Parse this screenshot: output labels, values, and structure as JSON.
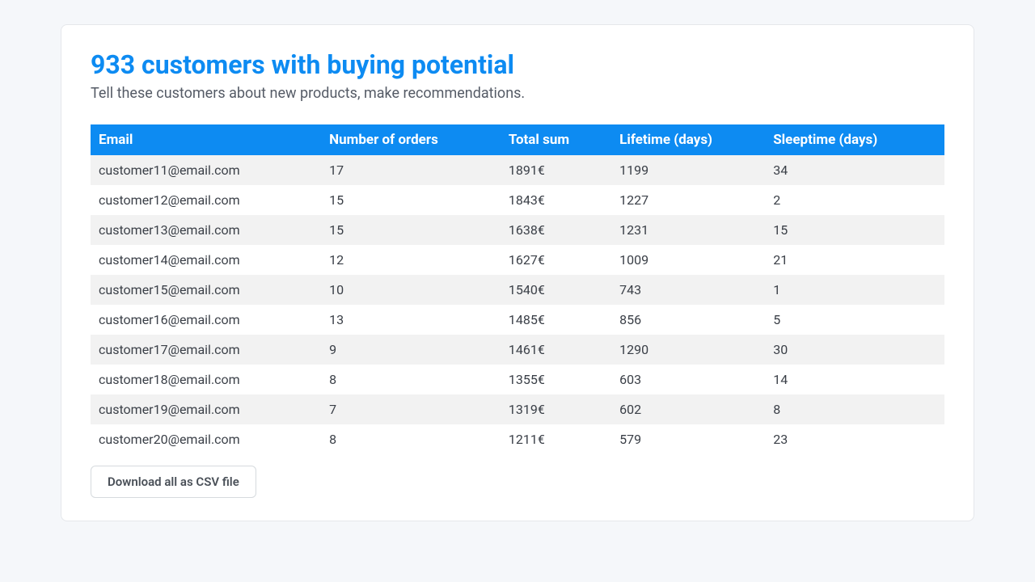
{
  "header": {
    "title": "933 customers with buying potential",
    "subtitle": "Tell these customers about new products, make recommendations."
  },
  "table": {
    "columns": [
      "Email",
      "Number of orders",
      "Total sum",
      "Lifetime (days)",
      "Sleeptime (days)"
    ],
    "rows": [
      [
        "customer11@email.com",
        "17",
        "1891€",
        "1199",
        "34"
      ],
      [
        "customer12@email.com",
        "15",
        "1843€",
        "1227",
        "2"
      ],
      [
        "customer13@email.com",
        "15",
        "1638€",
        "1231",
        "15"
      ],
      [
        "customer14@email.com",
        "12",
        "1627€",
        "1009",
        "21"
      ],
      [
        "customer15@email.com",
        "10",
        "1540€",
        "743",
        "1"
      ],
      [
        "customer16@email.com",
        "13",
        "1485€",
        "856",
        "5"
      ],
      [
        "customer17@email.com",
        "9",
        "1461€",
        "1290",
        "30"
      ],
      [
        "customer18@email.com",
        "8",
        "1355€",
        "603",
        "14"
      ],
      [
        "customer19@email.com",
        "7",
        "1319€",
        "602",
        "8"
      ],
      [
        "customer20@email.com",
        "8",
        "1211€",
        "579",
        "23"
      ]
    ]
  },
  "actions": {
    "download_label": "Download all as CSV file"
  },
  "style": {
    "accent_color": "#0d8bf2",
    "background_color": "#f5f7fa",
    "card_background": "#ffffff",
    "row_alt_background": "#f2f2f2",
    "text_color": "#3a3f47",
    "subtitle_color": "#555b66",
    "border_color": "#e5e7eb",
    "title_fontsize": 32,
    "subtitle_fontsize": 18,
    "table_fontsize": 16
  }
}
